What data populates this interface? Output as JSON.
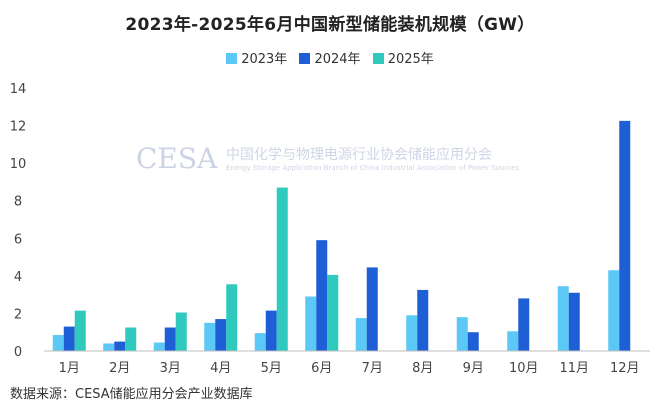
{
  "chart_data": {
    "type": "bar",
    "title": "2023年-2025年6月中国新型储能装机规模（GW）",
    "categories": [
      "1月",
      "2月",
      "3月",
      "4月",
      "5月",
      "6月",
      "7月",
      "8月",
      "9月",
      "10月",
      "11月",
      "12月"
    ],
    "series": [
      {
        "name": "2023年",
        "color": "#5bc8f5",
        "values": [
          0.85,
          0.4,
          0.45,
          1.5,
          0.95,
          2.9,
          1.75,
          1.9,
          1.8,
          1.05,
          3.45,
          4.3
        ]
      },
      {
        "name": "2024年",
        "color": "#1f5fd6",
        "values": [
          1.3,
          0.5,
          1.25,
          1.7,
          2.15,
          5.9,
          4.45,
          3.25,
          1.0,
          2.8,
          3.1,
          12.25
        ]
      },
      {
        "name": "2025年",
        "color": "#2fc9bd",
        "values": [
          2.15,
          1.25,
          2.05,
          3.55,
          8.7,
          4.05,
          null,
          null,
          null,
          null,
          null,
          null
        ]
      }
    ],
    "ylim": [
      0,
      14
    ],
    "yticks": [
      0,
      2,
      4,
      6,
      8,
      10,
      12,
      14
    ],
    "grid": false,
    "legend": "top-center"
  },
  "watermark": {
    "logo": "CESA",
    "org_cn": "中国化学与物理电源行业协会储能应用分会",
    "org_en": "Energy Storage Application Branch of China Industrial Association of Power Sources"
  },
  "source": "数据来源：CESA储能应用分会产业数据库"
}
